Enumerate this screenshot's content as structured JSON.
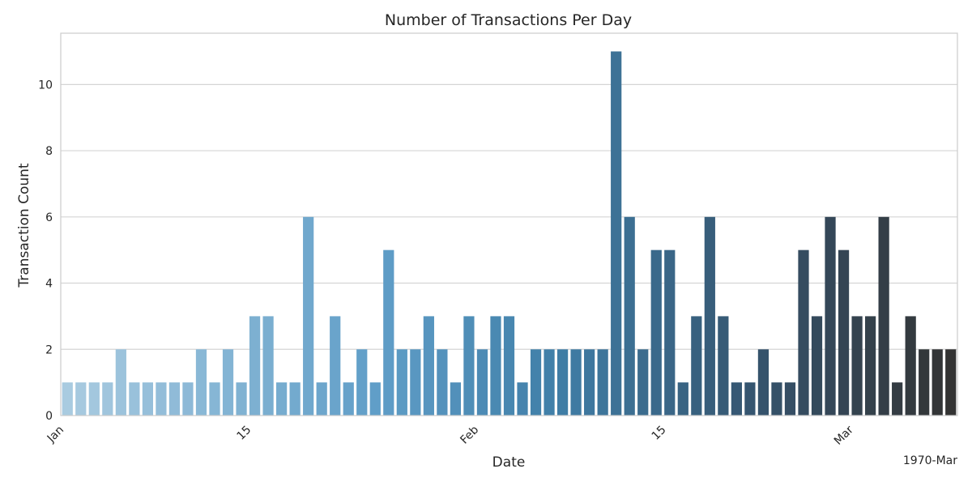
{
  "chart_data": {
    "type": "bar",
    "title": "Number of Transactions Per Day",
    "xlabel": "Date",
    "ylabel": "Transaction Count",
    "x_offset_label": "1970-Mar",
    "x_tick_labels": [
      "Jan",
      "15",
      "Feb",
      "15",
      "Mar"
    ],
    "y_ticks": [
      0,
      2,
      4,
      6,
      8,
      10
    ],
    "ylim": [
      0,
      11.55
    ],
    "grid": "horizontal",
    "palette": "blues_d",
    "values": [
      1,
      1,
      1,
      1,
      2,
      1,
      1,
      1,
      1,
      1,
      2,
      1,
      2,
      1,
      3,
      3,
      1,
      1,
      6,
      1,
      3,
      1,
      2,
      1,
      5,
      2,
      2,
      3,
      2,
      1,
      3,
      2,
      3,
      3,
      1,
      2,
      2,
      2,
      2,
      2,
      2,
      11,
      6,
      2,
      5,
      5,
      1,
      3,
      6,
      3,
      1,
      1,
      2,
      1,
      1,
      5,
      3,
      6,
      5,
      3,
      3,
      6,
      1,
      3,
      2,
      2,
      2
    ]
  }
}
